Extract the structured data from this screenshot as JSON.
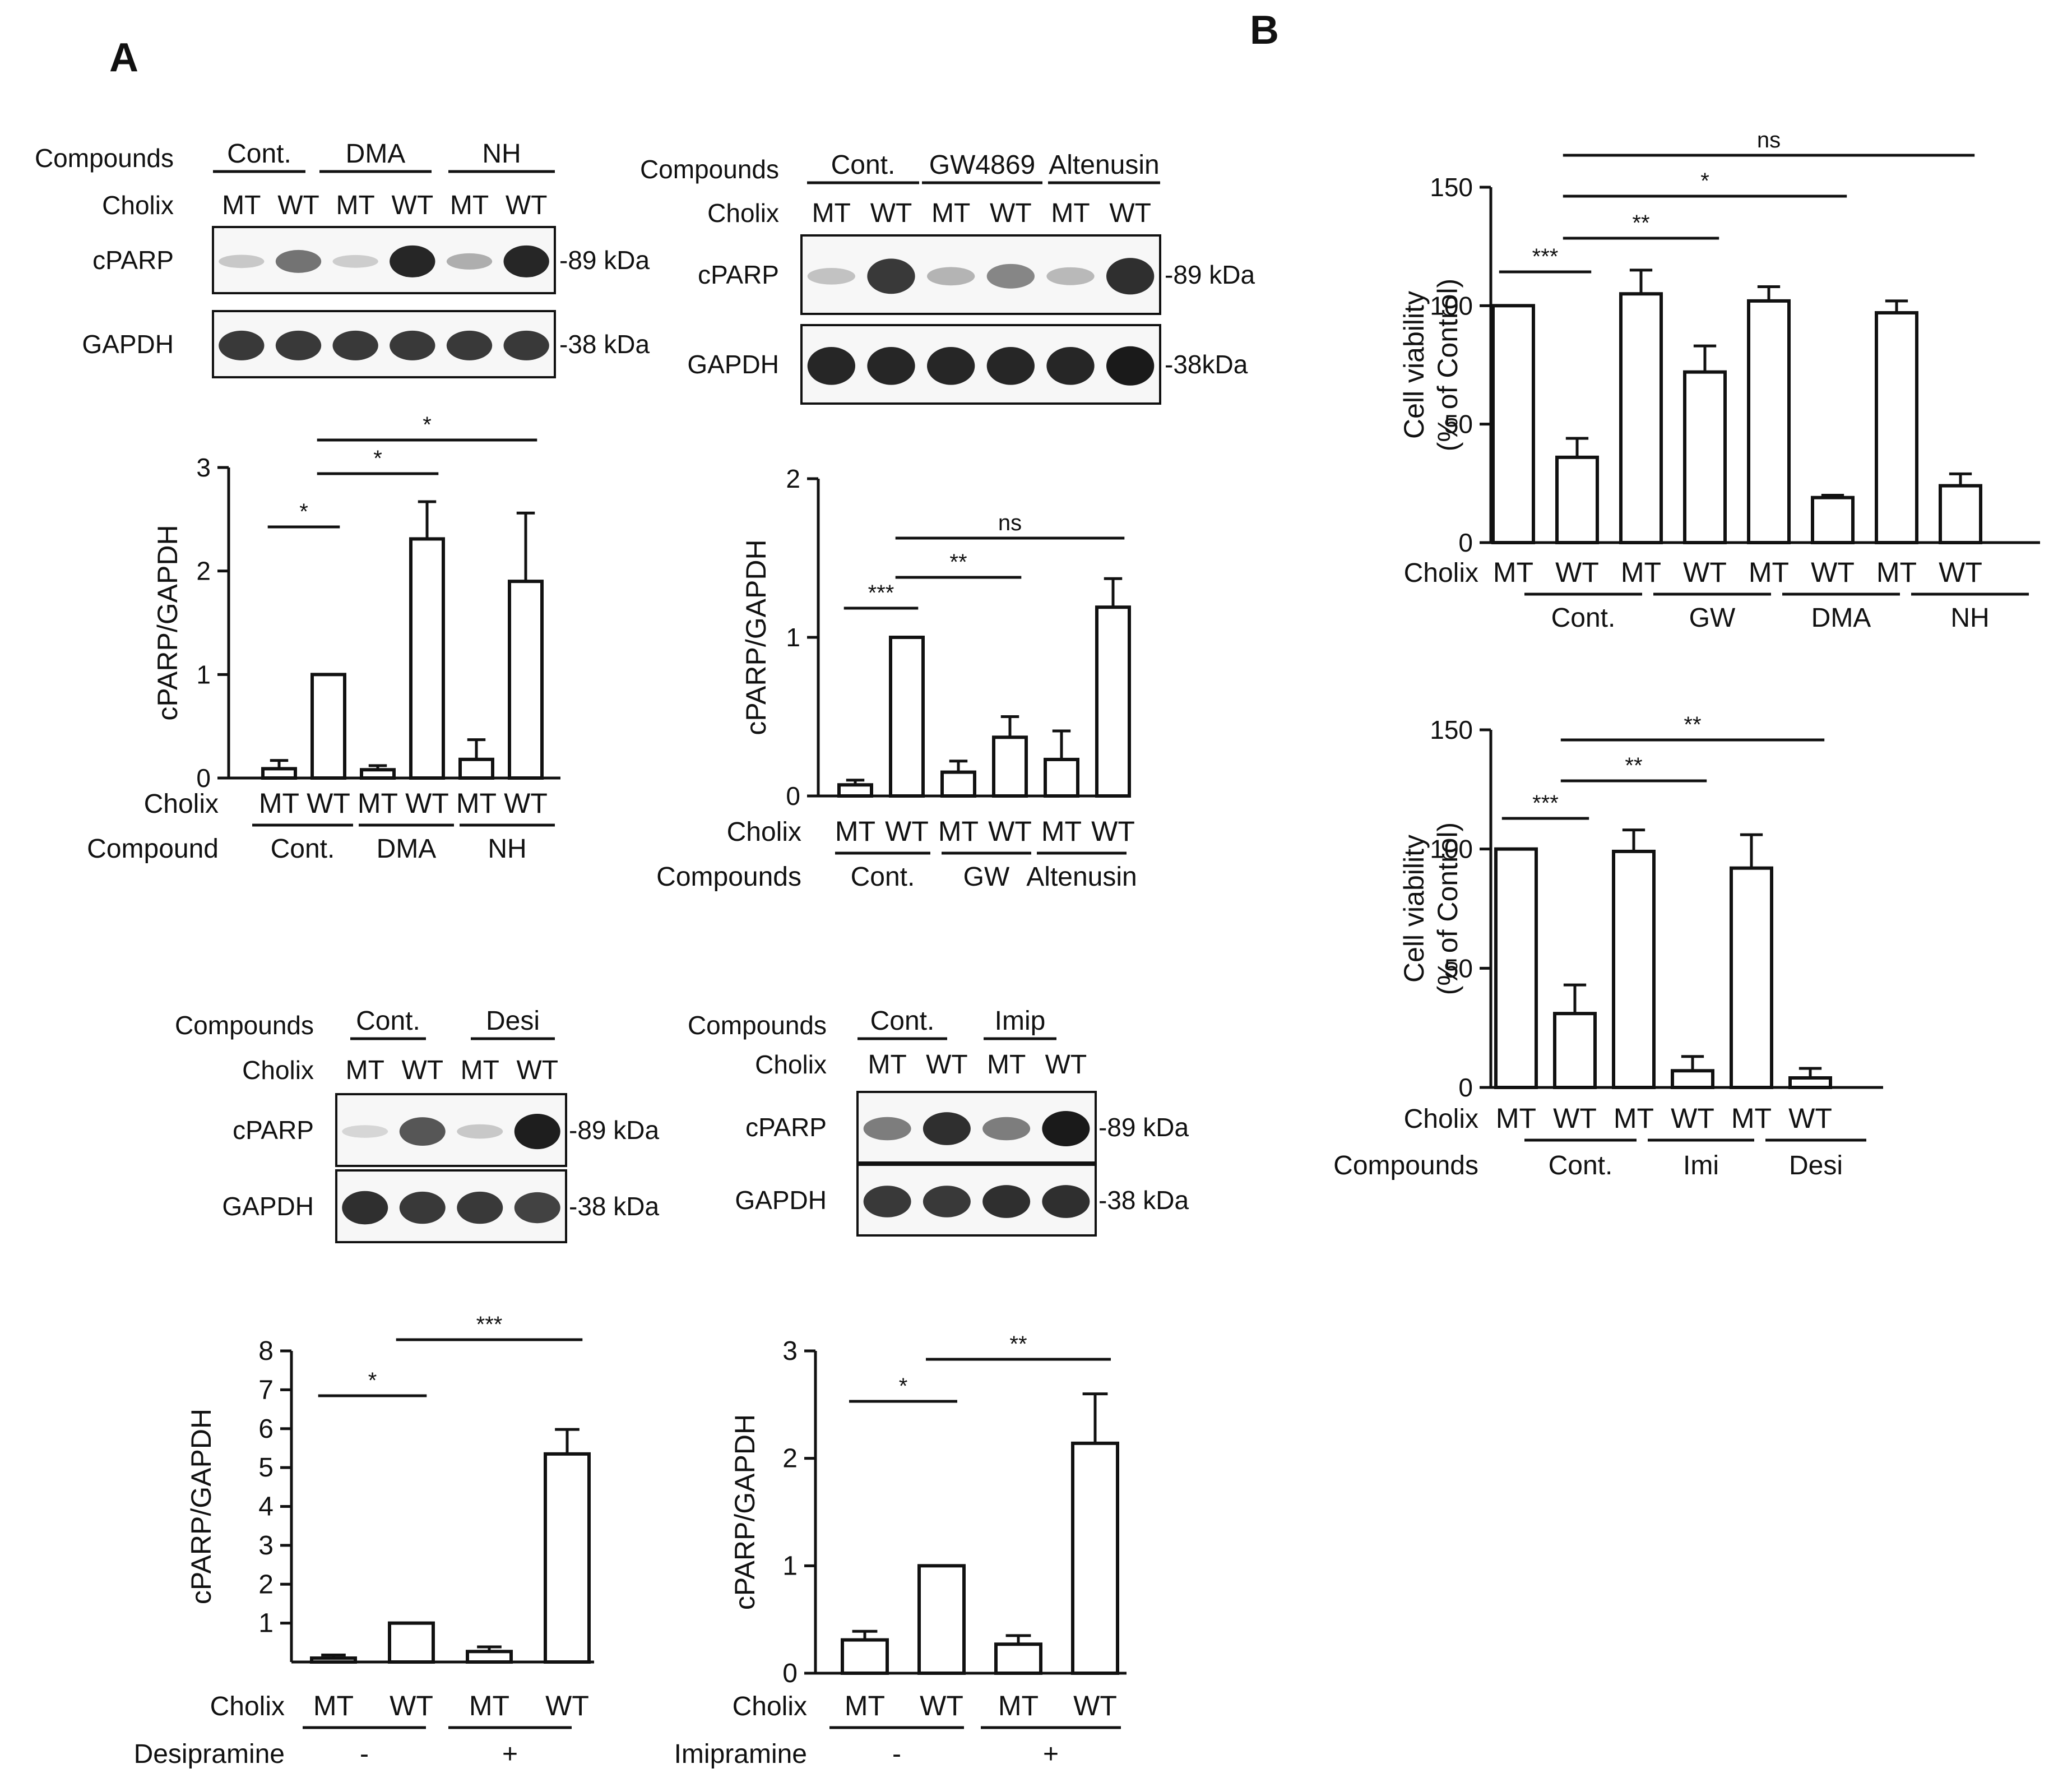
{
  "panels": {
    "A": "A",
    "B": "B"
  },
  "colors": {
    "ink": "#111111",
    "bar_fill": "#ffffff",
    "blot_bg": "#f7f7f7",
    "band": "#1a1a1a"
  },
  "blots": [
    {
      "compounds_label": "Compounds",
      "cholix_label": "Cholix",
      "groups": [
        "Cont.",
        "DMA",
        "NH"
      ],
      "lanes": [
        "MT",
        "WT",
        "MT",
        "WT",
        "MT",
        "WT"
      ],
      "rows": [
        {
          "label": "cPARP",
          "marker": "-89 kDa",
          "band_intensity": [
            0.12,
            0.55,
            0.1,
            0.95,
            0.25,
            0.95
          ]
        },
        {
          "label": "GAPDH",
          "marker": "-38 kDa",
          "band_intensity": [
            0.85,
            0.85,
            0.85,
            0.85,
            0.85,
            0.85
          ]
        }
      ]
    },
    {
      "compounds_label": "Compounds",
      "cholix_label": "Cholix",
      "groups": [
        "Cont.",
        "GW4869",
        "Altenusin"
      ],
      "lanes": [
        "MT",
        "WT",
        "MT",
        "WT",
        "MT",
        "WT"
      ],
      "rows": [
        {
          "label": "cPARP",
          "marker": "-89 kDa",
          "band_intensity": [
            0.15,
            0.85,
            0.22,
            0.45,
            0.2,
            0.9
          ]
        },
        {
          "label": "GAPDH",
          "marker": "-38kDa",
          "band_intensity": [
            0.95,
            0.95,
            0.95,
            0.95,
            0.95,
            1.0
          ]
        }
      ]
    },
    {
      "compounds_label": "Compounds",
      "cholix_label": "Cholix",
      "groups": [
        "Cont.",
        "Desi"
      ],
      "lanes": [
        "MT",
        "WT",
        "MT",
        "WT"
      ],
      "rows": [
        {
          "label": "cPARP",
          "marker": "-89 kDa",
          "band_intensity": [
            0.05,
            0.7,
            0.12,
            0.98
          ]
        },
        {
          "label": "GAPDH",
          "marker": "-38 kDa",
          "band_intensity": [
            0.9,
            0.85,
            0.85,
            0.8
          ]
        }
      ]
    },
    {
      "compounds_label": "Compounds",
      "cholix_label": "Cholix",
      "groups": [
        "Cont.",
        "Imip"
      ],
      "lanes": [
        "MT",
        "WT",
        "MT",
        "WT"
      ],
      "rows": [
        {
          "label": "cPARP",
          "marker": "-89 kDa",
          "band_intensity": [
            0.5,
            0.9,
            0.5,
            1.0
          ]
        },
        {
          "label": "GAPDH",
          "marker": "-38 kDa",
          "band_intensity": [
            0.85,
            0.85,
            0.9,
            0.9
          ]
        }
      ]
    }
  ],
  "chart_data": [
    {
      "type": "bar",
      "ylabel": "cPARP/GAPDH",
      "ylim": [
        0,
        3
      ],
      "yticks": [
        "0",
        "1",
        "2",
        "3"
      ],
      "row1_label": "Cholix",
      "row2_label": "Compound",
      "categories": [
        "MT",
        "WT",
        "MT",
        "WT",
        "MT",
        "WT"
      ],
      "groups": [
        "Cont.",
        "DMA",
        "NH"
      ],
      "values": [
        0.09,
        1.0,
        0.08,
        2.31,
        0.18,
        1.9
      ],
      "errors": [
        0.08,
        0.0,
        0.04,
        0.36,
        0.19,
        0.66
      ],
      "significance": [
        {
          "from": 0,
          "to": 1,
          "label": "*"
        },
        {
          "from": 1,
          "to": 3,
          "label": "*"
        },
        {
          "from": 1,
          "to": 5,
          "label": "*"
        }
      ]
    },
    {
      "type": "bar",
      "ylabel": "cPARP/GAPDH",
      "ylim": [
        0,
        2
      ],
      "yticks": [
        "0",
        "1",
        "2"
      ],
      "row1_label": "Cholix",
      "row2_label": "Compounds",
      "categories": [
        "MT",
        "WT",
        "MT",
        "WT",
        "MT",
        "WT"
      ],
      "groups": [
        "Cont.",
        "GW",
        "Altenusin"
      ],
      "values": [
        0.07,
        1.0,
        0.15,
        0.37,
        0.23,
        1.19
      ],
      "errors": [
        0.03,
        0.0,
        0.07,
        0.13,
        0.18,
        0.18
      ],
      "significance": [
        {
          "from": 0,
          "to": 1,
          "label": "***"
        },
        {
          "from": 1,
          "to": 3,
          "label": "**"
        },
        {
          "from": 1,
          "to": 5,
          "label": "ns"
        }
      ]
    },
    {
      "type": "bar",
      "ylabel": "cPARP/GAPDH",
      "ylim": [
        0,
        8
      ],
      "yticks": [
        "1",
        "2",
        "3",
        "4",
        "5",
        "6",
        "7",
        "8"
      ],
      "row1_label": "Cholix",
      "row2_label": "Desipramine",
      "categories": [
        "MT",
        "WT",
        "MT",
        "WT"
      ],
      "groups": [
        "-",
        "+"
      ],
      "values": [
        0.1,
        1.0,
        0.27,
        5.35
      ],
      "errors": [
        0.08,
        0.0,
        0.12,
        0.63
      ],
      "significance": [
        {
          "from": 0,
          "to": 1,
          "label": "*"
        },
        {
          "from": 1,
          "to": 3,
          "label": "***"
        }
      ]
    },
    {
      "type": "bar",
      "ylabel": "cPARP/GAPDH",
      "ylim": [
        0,
        3
      ],
      "yticks": [
        "0",
        "1",
        "2",
        "3"
      ],
      "row1_label": "Cholix",
      "row2_label": "Imipramine",
      "categories": [
        "MT",
        "WT",
        "MT",
        "WT"
      ],
      "groups": [
        "-",
        "+"
      ],
      "values": [
        0.31,
        1.0,
        0.27,
        2.14
      ],
      "errors": [
        0.08,
        0.0,
        0.08,
        0.46
      ],
      "significance": [
        {
          "from": 0,
          "to": 1,
          "label": "*"
        },
        {
          "from": 1,
          "to": 3,
          "label": "**"
        }
      ]
    },
    {
      "type": "bar",
      "ylabel": [
        "Cell viability",
        "(% of Control)"
      ],
      "ylim": [
        0,
        150
      ],
      "yticks": [
        "0",
        "50",
        "100",
        "150"
      ],
      "row1_label": "Cholix",
      "row2_label": "",
      "categories": [
        "MT",
        "WT",
        "MT",
        "WT",
        "MT",
        "WT",
        "MT",
        "WT"
      ],
      "groups": [
        "Cont.",
        "GW",
        "DMA",
        "NH"
      ],
      "values": [
        100,
        36,
        105,
        72,
        102,
        19,
        97,
        24
      ],
      "errors": [
        0,
        8,
        10,
        11,
        6,
        1,
        5,
        5
      ],
      "significance": [
        {
          "from": 0,
          "to": 1,
          "label": "***"
        },
        {
          "from": 1,
          "to": 3,
          "label": "**"
        },
        {
          "from": 1,
          "to": 5,
          "label": "*"
        },
        {
          "from": 1,
          "to": 7,
          "label": "ns"
        }
      ]
    },
    {
      "type": "bar",
      "ylabel": [
        "Cell viability",
        "(% of Control)"
      ],
      "ylim": [
        0,
        150
      ],
      "yticks": [
        "0",
        "50",
        "100",
        "150"
      ],
      "row1_label": "Cholix",
      "row2_label": "Compounds",
      "categories": [
        "MT",
        "WT",
        "MT",
        "WT",
        "MT",
        "WT"
      ],
      "groups": [
        "Cont.",
        "Imi",
        "Desi"
      ],
      "values": [
        100,
        31,
        99,
        7,
        92,
        4
      ],
      "errors": [
        0,
        12,
        9,
        6,
        14,
        4
      ],
      "significance": [
        {
          "from": 0,
          "to": 1,
          "label": "***"
        },
        {
          "from": 1,
          "to": 3,
          "label": "**"
        },
        {
          "from": 1,
          "to": 5,
          "label": "**"
        }
      ]
    }
  ]
}
